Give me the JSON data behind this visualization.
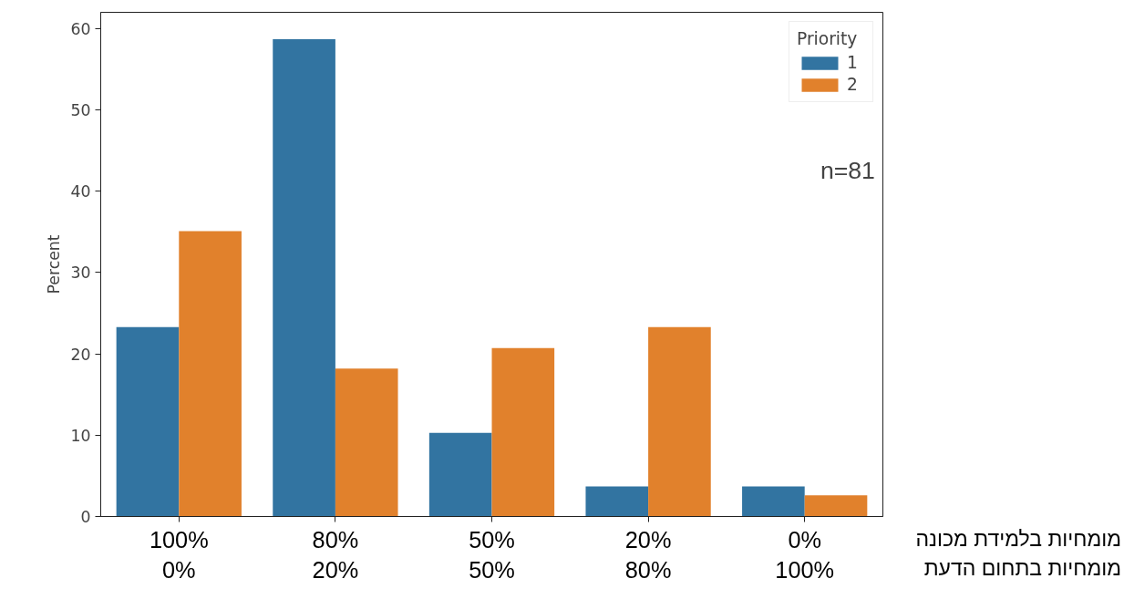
{
  "chart_data": {
    "type": "bar",
    "ylabel": "Percent",
    "legend_title": "Priority",
    "legend": "top right",
    "grid": false,
    "categories": [
      "100%\n0%",
      "80%\n20%",
      "50%\n50%",
      "20%\n80%",
      "0%\n100%"
    ],
    "series": [
      {
        "name": "1",
        "color": "#3274a1",
        "values": [
          23.3,
          58.7,
          10.3,
          3.7,
          3.7
        ]
      },
      {
        "name": "2",
        "color": "#e1812c",
        "values": [
          35.1,
          18.2,
          20.7,
          23.3,
          2.6
        ]
      }
    ],
    "ylim": [
      0,
      62
    ],
    "yticks": [
      0,
      10,
      20,
      30,
      40,
      50,
      60
    ],
    "annotations": [
      "n=81",
      "מומחיות בלמידת מכונה",
      "מומחיות בתחום הדעת"
    ]
  }
}
